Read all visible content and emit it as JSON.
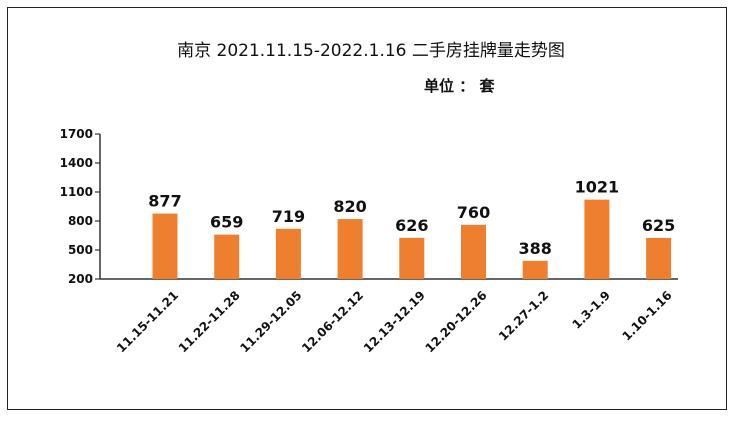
{
  "chart_data": {
    "type": "bar",
    "title": "南京 2021.11.15-2022.1.16 二手房挂牌量走势图",
    "unit_label": "单位 ： 套",
    "categories": [
      "11.15-11.21",
      "11.22-11.28",
      "11.29-12.05",
      "12.06-12.12",
      "12.13-12.19",
      "12.20-12.26",
      "12.27-1.2",
      "1.3-1.9",
      "1.10-1.16"
    ],
    "values": [
      877,
      659,
      719,
      820,
      626,
      760,
      388,
      1021,
      625
    ],
    "value_labels": [
      "877",
      "659",
      "719",
      "820",
      "626",
      "760",
      "388",
      "1021",
      "625"
    ],
    "yticks": [
      200,
      500,
      800,
      1100,
      1400,
      1700
    ],
    "ytick_labels": [
      "200",
      "500",
      "800",
      "1100",
      "1400",
      "1700"
    ],
    "ylim": [
      200,
      1700
    ],
    "bar_color": "#ee7f2f",
    "grid": false,
    "legend": "none"
  }
}
